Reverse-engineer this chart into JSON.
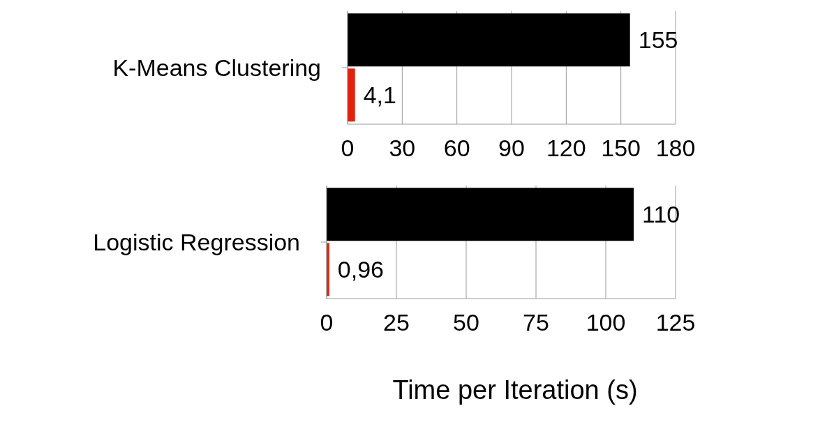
{
  "chart_data": [
    {
      "type": "bar",
      "orientation": "horizontal",
      "categories": [
        "K-Means Clustering"
      ],
      "series": [
        {
          "color": "#000000",
          "values": [
            155
          ],
          "value_labels": [
            "155"
          ]
        },
        {
          "color": "#e2200c",
          "values": [
            4.1
          ],
          "value_labels": [
            "4,1"
          ]
        }
      ],
      "xlim": [
        0,
        180
      ],
      "xticks": [
        0,
        30,
        60,
        90,
        120,
        150,
        180
      ],
      "grid": "x"
    },
    {
      "type": "bar",
      "orientation": "horizontal",
      "categories": [
        "Logistic Regression"
      ],
      "series": [
        {
          "color": "#000000",
          "values": [
            110
          ],
          "value_labels": [
            "110"
          ]
        },
        {
          "color": "#e2200c",
          "values": [
            0.96
          ],
          "value_labels": [
            "0,96"
          ]
        }
      ],
      "xlim": [
        0,
        125
      ],
      "xticks": [
        0,
        25,
        50,
        75,
        100,
        125
      ],
      "grid": "x",
      "xlabel": "Time per Iteration (s)"
    }
  ]
}
